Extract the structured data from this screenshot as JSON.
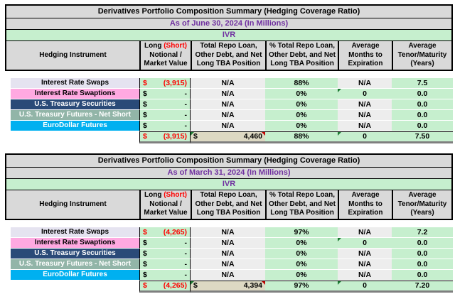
{
  "colors": {
    "header_fill": "#D9D9D9",
    "green_fill": "#C6EFCE",
    "gray_fill": "#EDEDED",
    "tan_total_fill": "#DDD9C3",
    "purple_text": "#7030A0",
    "red_text": "#FF0000",
    "row_fills": [
      "#E5E3F0",
      "#FFA9E1",
      "#2A4A78",
      "#92B5A8",
      "#00B0F0"
    ],
    "total_bottom_border": "#7F7F7F"
  },
  "tables": [
    {
      "title": "Derivatives Portfolio Composition Summary (Hedging Coverage Ratio)",
      "as_of": "As of June 30, 2024 (In Millions)",
      "entity": "IVR",
      "header": {
        "col1": "Hedging Instrument",
        "col2_long": "Long ",
        "col2_short": "(Short)",
        "col2_rest": "\nNotional /\nMarket Value",
        "col3": "Total Repo Loan,\nOther Debt, and Net\nLong  TBA Position",
        "col4": "% Total Repo Loan,\nOther Debt, and Net\nLong TBA Position",
        "col5": "Average\nMonths to\nExpiration",
        "col6": "Average\nTenor/Maturity\n(Years)"
      },
      "rows": [
        {
          "label": "Interest Rate Swaps",
          "currency": "$",
          "notional": "(3,915)",
          "repo": "N/A",
          "pct": "88%",
          "months": "N/A",
          "tenor": "7.5"
        },
        {
          "label": "Interest Rate Swaptions",
          "currency": "$",
          "notional": "-",
          "repo": "N/A",
          "pct": "0%",
          "months": "0",
          "tenor": "0.0"
        },
        {
          "label": "U.S. Treasury Securities",
          "currency": "$",
          "notional": "-",
          "repo": "N/A",
          "pct": "0%",
          "months": "N/A",
          "tenor": "0.0"
        },
        {
          "label": "U.S. Treasury Futures - Net Short",
          "currency": "$",
          "notional": "-",
          "repo": "N/A",
          "pct": "0%",
          "months": "N/A",
          "tenor": "0.0"
        },
        {
          "label": "EuroDollar Futures",
          "currency": "$",
          "notional": "-",
          "repo": "N/A",
          "pct": "0%",
          "months": "N/A",
          "tenor": "0.0"
        }
      ],
      "total": {
        "currency": "$",
        "notional": "(3,915)",
        "repo_currency": "$",
        "repo": "4,460",
        "pct": "88%",
        "months": "0",
        "tenor": "7.50"
      }
    },
    {
      "title": "Derivatives Portfolio Composition Summary (Hedging Coverage Ratio)",
      "as_of": "As of March 31, 2024 (In Millions)",
      "entity": "IVR",
      "header": {
        "col1": "Hedging Instrument",
        "col2_long": "Long ",
        "col2_short": "(Short)",
        "col2_rest": "\nNotional /\nMarket Value",
        "col3": "Total Repo Loan,\nOther Debt, and Net\nLong  TBA Position",
        "col4": "% Total Repo Loan,\nOther Debt, and Net\nLong TBA Position",
        "col5": "Average\nMonths to\nExpiration",
        "col6": "Average\nTenor/Maturity\n(Years)"
      },
      "rows": [
        {
          "label": "Interest Rate Swaps",
          "currency": "$",
          "notional": "(4,265)",
          "repo": "N/A",
          "pct": "97%",
          "months": "N/A",
          "tenor": "7.2"
        },
        {
          "label": "Interest Rate Swaptions",
          "currency": "$",
          "notional": "-",
          "repo": "N/A",
          "pct": "0%",
          "months": "0",
          "tenor": "0.0"
        },
        {
          "label": "U.S. Treasury Securities",
          "currency": "$",
          "notional": "-",
          "repo": "N/A",
          "pct": "0%",
          "months": "N/A",
          "tenor": "0.0"
        },
        {
          "label": "U.S. Treasury Futures - Net Short",
          "currency": "$",
          "notional": "-",
          "repo": "N/A",
          "pct": "0%",
          "months": "N/A",
          "tenor": "0.0"
        },
        {
          "label": "EuroDollar Futures",
          "currency": "$",
          "notional": "-",
          "repo": "N/A",
          "pct": "0%",
          "months": "N/A",
          "tenor": "0.0"
        }
      ],
      "total": {
        "currency": "$",
        "notional": "(4,265)",
        "repo_currency": "$",
        "repo": "4,394",
        "pct": "97%",
        "months": "0",
        "tenor": "7.20"
      }
    }
  ]
}
